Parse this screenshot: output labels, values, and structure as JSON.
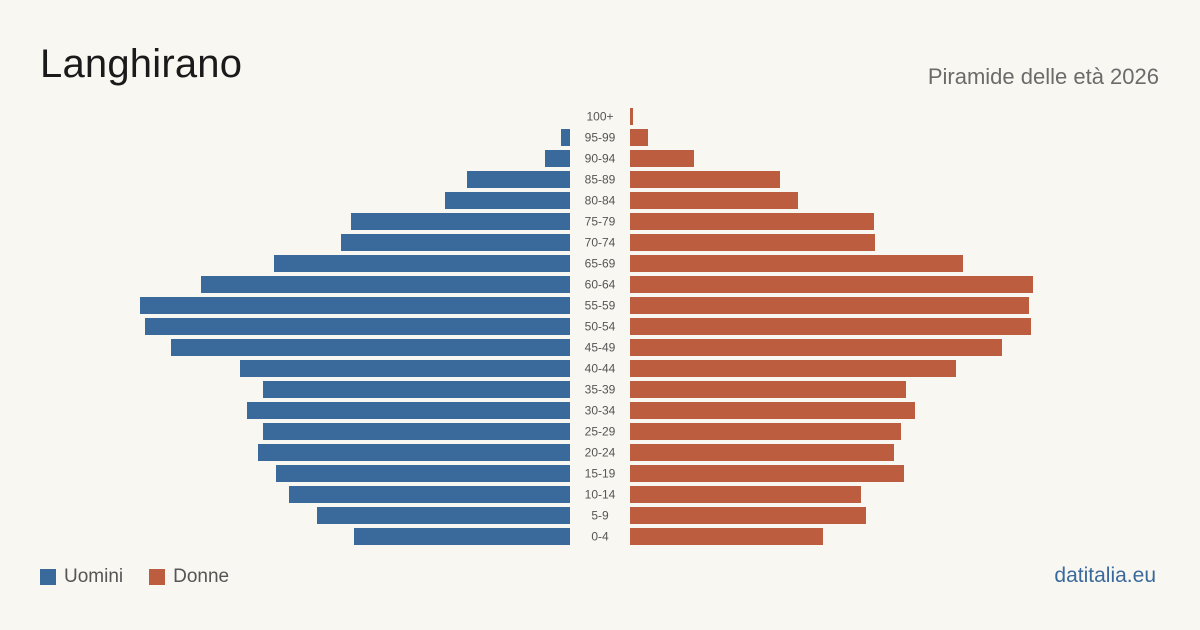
{
  "header": {
    "title": "Langhirano",
    "subtitle": "Piramide delle età 2026"
  },
  "legend": {
    "men_label": "Uomini",
    "women_label": "Donne"
  },
  "footer": {
    "brand": "datitalia.eu"
  },
  "colors": {
    "men": "#3a6a9c",
    "women": "#bb5d3e"
  },
  "chart_data": {
    "type": "bar",
    "orientation": "horizontal",
    "categories": [
      "100+",
      "95-99",
      "90-94",
      "85-89",
      "80-84",
      "75-79",
      "70-74",
      "65-69",
      "60-64",
      "55-59",
      "50-54",
      "45-49",
      "40-44",
      "35-39",
      "30-34",
      "25-29",
      "20-24",
      "15-19",
      "10-14",
      "5-9",
      "0-4"
    ],
    "series": [
      {
        "name": "Uomini",
        "values": [
          0,
          9,
          25,
          103,
          125,
          219,
          229,
          296,
          369,
          430,
          425,
          399,
          330,
          307,
          323,
          307,
          312,
          294,
          281,
          253,
          216
        ]
      },
      {
        "name": "Donne",
        "values": [
          3,
          18,
          64,
          150,
          168,
          244,
          245,
          333,
          403,
          399,
          401,
          372,
          326,
          276,
          285,
          271,
          264,
          274,
          231,
          236,
          193
        ]
      }
    ],
    "title": "Langhirano",
    "subtitle": "Piramide delle età 2026",
    "legend_position": "bottom-left",
    "grid": false
  }
}
